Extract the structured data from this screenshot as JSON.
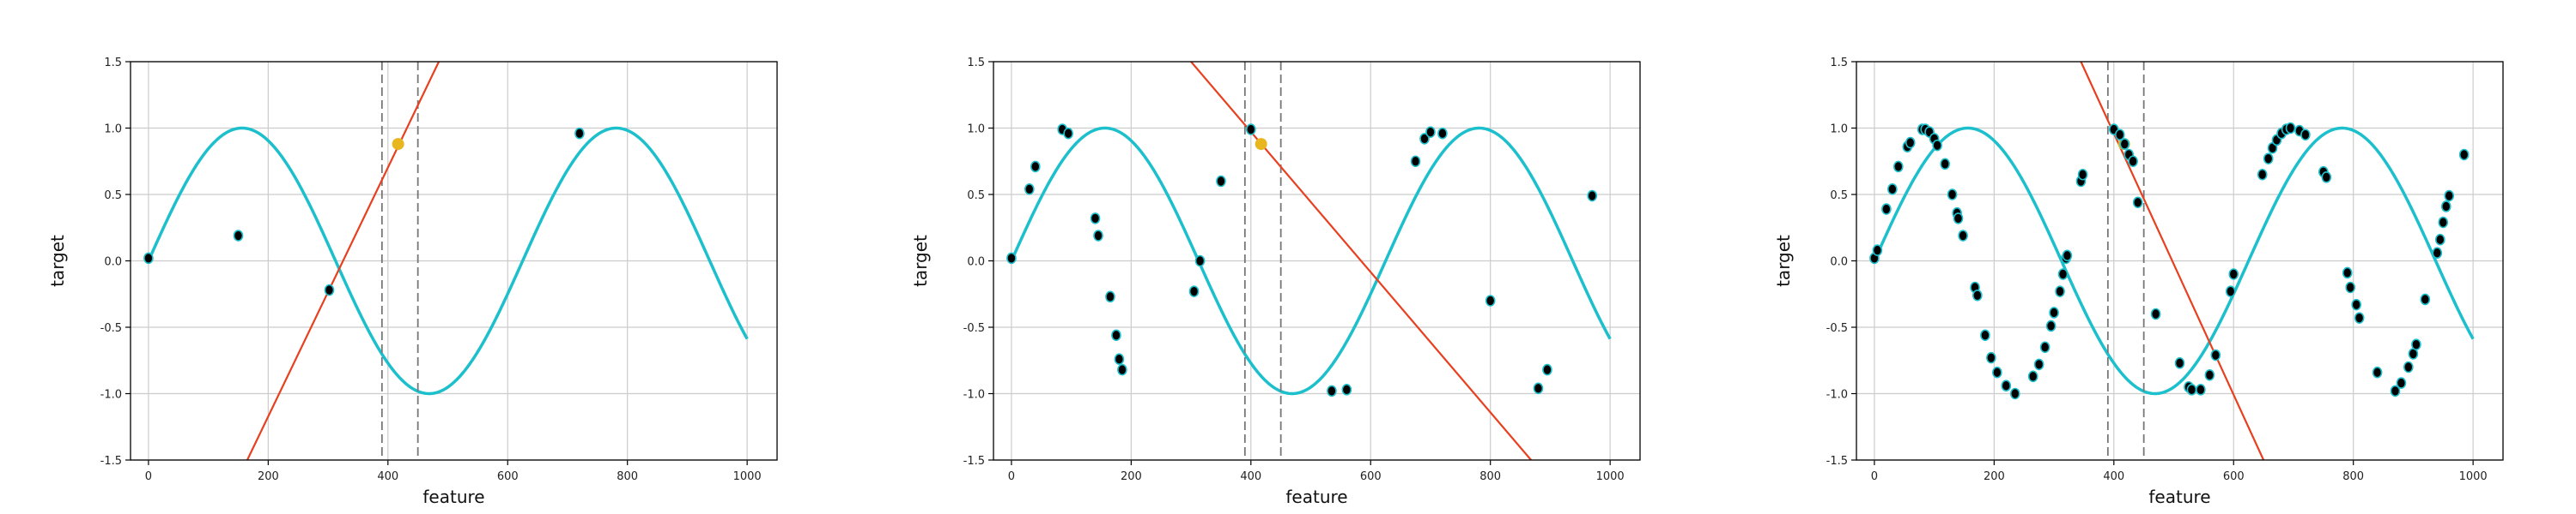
{
  "colors": {
    "curve": "#1cbfcc",
    "fit_line": "#e8401f",
    "point_fill": "#000000",
    "point_edge": "#1cbfcc",
    "highlight": "#e8b61f",
    "window": "#777777",
    "grid": "#cccccc"
  },
  "chart_data": [
    {
      "type": "line",
      "xlabel": "feature",
      "ylabel": "target",
      "xlim": [
        -30,
        1050
      ],
      "ylim": [
        -1.5,
        1.5
      ],
      "xticks": [
        "0",
        "200",
        "400",
        "600",
        "800",
        "1000"
      ],
      "yticks": [
        "-1.5",
        "-1.0",
        "-0.5",
        "0.0",
        "0.5",
        "1.0",
        "1.5"
      ],
      "grid": true,
      "curve": {
        "function": "sin(2*pi*x/625)",
        "x_range": [
          0,
          1000
        ]
      },
      "window": [
        390,
        450
      ],
      "highlight_point": {
        "x": 417,
        "y": 0.88
      },
      "fit_line": {
        "x": [
          165,
          485
        ],
        "y": [
          -1.5,
          1.5
        ]
      },
      "points": [
        {
          "x": 0,
          "y": 0.02
        },
        {
          "x": 150,
          "y": 0.19
        },
        {
          "x": 302,
          "y": -0.22
        },
        {
          "x": 720,
          "y": 0.96
        }
      ]
    },
    {
      "type": "line",
      "xlabel": "feature",
      "ylabel": "target",
      "xlim": [
        -30,
        1050
      ],
      "ylim": [
        -1.5,
        1.5
      ],
      "xticks": [
        "0",
        "200",
        "400",
        "600",
        "800",
        "1000"
      ],
      "yticks": [
        "-1.5",
        "-1.0",
        "-0.5",
        "0.0",
        "0.5",
        "1.0",
        "1.5"
      ],
      "grid": true,
      "curve": {
        "function": "sin(2*pi*x/625)",
        "x_range": [
          0,
          1000
        ]
      },
      "window": [
        390,
        450
      ],
      "highlight_point": {
        "x": 417,
        "y": 0.88
      },
      "fit_line": {
        "x": [
          300,
          868
        ],
        "y": [
          1.5,
          -1.5
        ]
      },
      "points": [
        {
          "x": 0,
          "y": 0.02
        },
        {
          "x": 30,
          "y": 0.54
        },
        {
          "x": 40,
          "y": 0.71
        },
        {
          "x": 85,
          "y": 0.99
        },
        {
          "x": 95,
          "y": 0.96
        },
        {
          "x": 140,
          "y": 0.32
        },
        {
          "x": 145,
          "y": 0.19
        },
        {
          "x": 165,
          "y": -0.27
        },
        {
          "x": 175,
          "y": -0.56
        },
        {
          "x": 180,
          "y": -0.74
        },
        {
          "x": 185,
          "y": -0.82
        },
        {
          "x": 305,
          "y": -0.23
        },
        {
          "x": 315,
          "y": 0.0
        },
        {
          "x": 350,
          "y": 0.6
        },
        {
          "x": 400,
          "y": 0.99
        },
        {
          "x": 535,
          "y": -0.98
        },
        {
          "x": 560,
          "y": -0.97
        },
        {
          "x": 675,
          "y": 0.75
        },
        {
          "x": 690,
          "y": 0.92
        },
        {
          "x": 700,
          "y": 0.97
        },
        {
          "x": 720,
          "y": 0.96
        },
        {
          "x": 800,
          "y": -0.3
        },
        {
          "x": 880,
          "y": -0.96
        },
        {
          "x": 895,
          "y": -0.82
        },
        {
          "x": 970,
          "y": 0.49
        }
      ]
    },
    {
      "type": "line",
      "xlabel": "feature",
      "ylabel": "target",
      "xlim": [
        -30,
        1050
      ],
      "ylim": [
        -1.5,
        1.5
      ],
      "xticks": [
        "0",
        "200",
        "400",
        "600",
        "800",
        "1000"
      ],
      "yticks": [
        "-1.5",
        "-1.0",
        "-0.5",
        "0.0",
        "0.5",
        "1.0",
        "1.5"
      ],
      "grid": true,
      "curve": {
        "function": "sin(2*pi*x/625)",
        "x_range": [
          0,
          1000
        ]
      },
      "window": [
        390,
        450
      ],
      "highlight_point": {
        "x": 417,
        "y": 0.88
      },
      "fit_line": {
        "x": [
          345,
          650
        ],
        "y": [
          1.5,
          -1.5
        ]
      },
      "points": [
        {
          "x": 0,
          "y": 0.02
        },
        {
          "x": 5,
          "y": 0.08
        },
        {
          "x": 20,
          "y": 0.39
        },
        {
          "x": 30,
          "y": 0.54
        },
        {
          "x": 40,
          "y": 0.71
        },
        {
          "x": 55,
          "y": 0.86
        },
        {
          "x": 60,
          "y": 0.89
        },
        {
          "x": 80,
          "y": 0.99
        },
        {
          "x": 85,
          "y": 0.99
        },
        {
          "x": 92,
          "y": 0.97
        },
        {
          "x": 100,
          "y": 0.92
        },
        {
          "x": 105,
          "y": 0.87
        },
        {
          "x": 118,
          "y": 0.73
        },
        {
          "x": 130,
          "y": 0.5
        },
        {
          "x": 138,
          "y": 0.36
        },
        {
          "x": 140,
          "y": 0.32
        },
        {
          "x": 148,
          "y": 0.19
        },
        {
          "x": 168,
          "y": -0.2
        },
        {
          "x": 172,
          "y": -0.26
        },
        {
          "x": 185,
          "y": -0.56
        },
        {
          "x": 195,
          "y": -0.73
        },
        {
          "x": 205,
          "y": -0.84
        },
        {
          "x": 220,
          "y": -0.94
        },
        {
          "x": 235,
          "y": -1.0
        },
        {
          "x": 265,
          "y": -0.87
        },
        {
          "x": 275,
          "y": -0.78
        },
        {
          "x": 285,
          "y": -0.65
        },
        {
          "x": 295,
          "y": -0.49
        },
        {
          "x": 300,
          "y": -0.39
        },
        {
          "x": 310,
          "y": -0.23
        },
        {
          "x": 315,
          "y": -0.1
        },
        {
          "x": 320,
          "y": 0.02
        },
        {
          "x": 322,
          "y": 0.04
        },
        {
          "x": 345,
          "y": 0.6
        },
        {
          "x": 348,
          "y": 0.65
        },
        {
          "x": 400,
          "y": 0.99
        },
        {
          "x": 410,
          "y": 0.95
        },
        {
          "x": 418,
          "y": 0.88
        },
        {
          "x": 425,
          "y": 0.8
        },
        {
          "x": 432,
          "y": 0.75
        },
        {
          "x": 440,
          "y": 0.44
        },
        {
          "x": 470,
          "y": -0.4
        },
        {
          "x": 510,
          "y": -0.77
        },
        {
          "x": 525,
          "y": -0.95
        },
        {
          "x": 530,
          "y": -0.97
        },
        {
          "x": 545,
          "y": -0.97
        },
        {
          "x": 560,
          "y": -0.86
        },
        {
          "x": 570,
          "y": -0.71
        },
        {
          "x": 595,
          "y": -0.23
        },
        {
          "x": 600,
          "y": -0.1
        },
        {
          "x": 648,
          "y": 0.65
        },
        {
          "x": 658,
          "y": 0.77
        },
        {
          "x": 665,
          "y": 0.85
        },
        {
          "x": 672,
          "y": 0.91
        },
        {
          "x": 680,
          "y": 0.96
        },
        {
          "x": 688,
          "y": 0.99
        },
        {
          "x": 695,
          "y": 1.0
        },
        {
          "x": 710,
          "y": 0.98
        },
        {
          "x": 720,
          "y": 0.95
        },
        {
          "x": 750,
          "y": 0.67
        },
        {
          "x": 755,
          "y": 0.63
        },
        {
          "x": 790,
          "y": -0.09
        },
        {
          "x": 795,
          "y": -0.2
        },
        {
          "x": 805,
          "y": -0.33
        },
        {
          "x": 810,
          "y": -0.43
        },
        {
          "x": 840,
          "y": -0.84
        },
        {
          "x": 870,
          "y": -0.98
        },
        {
          "x": 880,
          "y": -0.92
        },
        {
          "x": 892,
          "y": -0.8
        },
        {
          "x": 900,
          "y": -0.7
        },
        {
          "x": 905,
          "y": -0.63
        },
        {
          "x": 920,
          "y": -0.29
        },
        {
          "x": 940,
          "y": 0.06
        },
        {
          "x": 945,
          "y": 0.16
        },
        {
          "x": 950,
          "y": 0.29
        },
        {
          "x": 955,
          "y": 0.41
        },
        {
          "x": 960,
          "y": 0.49
        },
        {
          "x": 985,
          "y": 0.8
        }
      ]
    }
  ]
}
